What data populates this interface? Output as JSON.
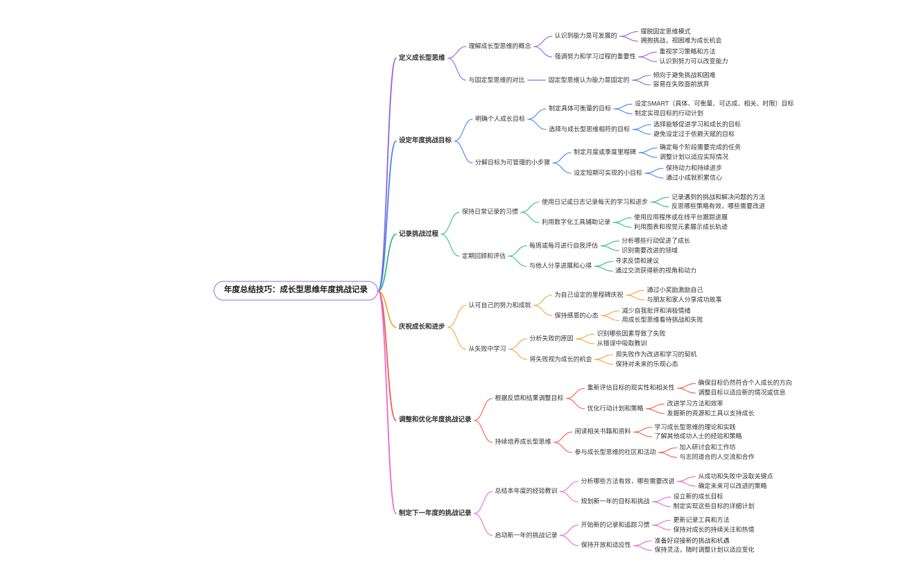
{
  "root": {
    "label": "年度总结技巧：成长型思维年度挑战记录",
    "border_color": "#9a6ae8",
    "children": [
      {
        "label": "定义成长型思维",
        "color": "#8f63e3",
        "children": [
          {
            "label": "理解成长型思维的概念",
            "children": [
              {
                "label": "认识到能力是可发展的",
                "children": [
                  {
                    "label": "摆脱固定思维模式"
                  },
                  {
                    "label": "拥抱挑战，视困难为成长机会"
                  }
                ]
              },
              {
                "label": "强调努力和学习过程的重要性",
                "children": [
                  {
                    "label": "重视学习策略和方法"
                  },
                  {
                    "label": "认识到努力可以改变能力"
                  }
                ]
              }
            ]
          },
          {
            "label": "与固定型思维的对比",
            "children": [
              {
                "label": "固定型思维认为能力是固定的",
                "children": [
                  {
                    "label": "倾向于避免挑战和困难"
                  },
                  {
                    "label": "容易在失败面前放弃"
                  }
                ]
              }
            ]
          }
        ]
      },
      {
        "label": "设定年度挑战目标",
        "color": "#4486ea",
        "children": [
          {
            "label": "明确个人成长目标",
            "children": [
              {
                "label": "制定具体可衡量的目标",
                "children": [
                  {
                    "label": "设定SMART（具体、可衡量、可达成、相关、时限）目标"
                  },
                  {
                    "label": "制定实现目标的行动计划"
                  }
                ]
              },
              {
                "label": "选择与成长型思维相符的目标",
                "children": [
                  {
                    "label": "选择能够促进学习和成长的目标"
                  },
                  {
                    "label": "避免设定过于依赖天赋的目标"
                  }
                ]
              }
            ]
          },
          {
            "label": "分解目标为可管理的小步骤",
            "children": [
              {
                "label": "制定月度或季度里程碑",
                "children": [
                  {
                    "label": "确定每个阶段需要完成的任务"
                  },
                  {
                    "label": "调整计划以适应实际情况"
                  }
                ]
              },
              {
                "label": "设定短期可实现的小目标",
                "children": [
                  {
                    "label": "保持动力和持续进步"
                  },
                  {
                    "label": "通过小成就积累信心"
                  }
                ]
              }
            ]
          }
        ]
      },
      {
        "label": "记录挑战过程",
        "color": "#30b989",
        "children": [
          {
            "label": "保持日常记录的习惯",
            "children": [
              {
                "label": "使用日记或日志记录每天的学习和进步",
                "children": [
                  {
                    "label": "记录遇到的挑战和解决问题的方法"
                  },
                  {
                    "label": "反思哪些策略有效，哪些需要改进"
                  }
                ]
              },
              {
                "label": "利用数字化工具辅助记录",
                "children": [
                  {
                    "label": "使用应用程序或在线平台跟踪进展"
                  },
                  {
                    "label": "利用图表和视觉元素展示成长轨迹"
                  }
                ]
              }
            ]
          },
          {
            "label": "定期回顾和评估",
            "children": [
              {
                "label": "每周或每月进行自我评估",
                "children": [
                  {
                    "label": "分析哪些行动促进了成长"
                  },
                  {
                    "label": "识别需要改进的领域"
                  }
                ]
              },
              {
                "label": "与他人分享进展和心得",
                "children": [
                  {
                    "label": "寻求反馈和建议"
                  },
                  {
                    "label": "通过交流获得新的视角和动力"
                  }
                ]
              }
            ]
          }
        ]
      },
      {
        "label": "庆祝成长和进步",
        "color": "#f2a33c",
        "children": [
          {
            "label": "认可自己的努力和成就",
            "children": [
              {
                "label": "为自己设定的里程碑庆祝",
                "children": [
                  {
                    "label": "通过小奖励激励自己"
                  },
                  {
                    "label": "与朋友和家人分享成功故事"
                  }
                ]
              },
              {
                "label": "保持感恩的心态",
                "children": [
                  {
                    "label": "减少自我批评和消极情绪"
                  },
                  {
                    "label": "用成长型思维看待挑战和失败"
                  }
                ]
              }
            ]
          },
          {
            "label": "从失败中学习",
            "children": [
              {
                "label": "分析失败的原因",
                "children": [
                  {
                    "label": "识别哪些因素导致了失败"
                  },
                  {
                    "label": "从错误中吸取教训"
                  }
                ]
              },
              {
                "label": "将失败视为成长的机会",
                "children": [
                  {
                    "label": "用失败作为改进和学习的契机"
                  },
                  {
                    "label": "保持对未来的乐观心态"
                  }
                ]
              }
            ]
          }
        ]
      },
      {
        "label": "调整和优化年度挑战记录",
        "color": "#f25b4a",
        "children": [
          {
            "label": "根据反馈和结果调整目标",
            "children": [
              {
                "label": "重新评估目标的现实性和相关性",
                "children": [
                  {
                    "label": "确保目标仍然符合个人成长的方向"
                  },
                  {
                    "label": "调整目标以适应新的情况或信息"
                  }
                ]
              },
              {
                "label": "优化行动计划和策略",
                "children": [
                  {
                    "label": "改进学习方法和效率"
                  },
                  {
                    "label": "发掘新的资源和工具以支持成长"
                  }
                ]
              }
            ]
          },
          {
            "label": "持续培养成长型思维",
            "children": [
              {
                "label": "阅读相关书籍和资料",
                "children": [
                  {
                    "label": "学习成长型思维的理论和实践"
                  },
                  {
                    "label": "了解其他成功人士的经验和策略"
                  }
                ]
              },
              {
                "label": "参与成长型思维的社区和活动",
                "children": [
                  {
                    "label": "加入研讨会和工作坊"
                  },
                  {
                    "label": "与志同道合的人交流和合作"
                  }
                ]
              }
            ]
          }
        ]
      },
      {
        "label": "制定下一年度的挑战记录",
        "color": "#e966d6",
        "children": [
          {
            "label": "总结本年度的经验教训",
            "children": [
              {
                "label": "分析哪些方法有效，哪些需要改进",
                "children": [
                  {
                    "label": "从成功和失败中汲取关键点"
                  },
                  {
                    "label": "确定未来可以改进的策略"
                  }
                ]
              },
              {
                "label": "规划新一年的目标和挑战",
                "children": [
                  {
                    "label": "设立新的成长目标"
                  },
                  {
                    "label": "制定实现这些目标的详细计划"
                  }
                ]
              }
            ]
          },
          {
            "label": "启动新一年的挑战记录",
            "children": [
              {
                "label": "开始新的记录和追踪习惯",
                "children": [
                  {
                    "label": "更新记录工具和方法"
                  },
                  {
                    "label": "保持对成长的持续关注和热情"
                  }
                ]
              },
              {
                "label": "保持开放和适应性",
                "children": [
                  {
                    "label": "准备好迎接新的挑战和机遇"
                  },
                  {
                    "label": "保持灵活，随时调整计划以适应变化"
                  }
                ]
              }
            ]
          }
        ]
      }
    ]
  }
}
